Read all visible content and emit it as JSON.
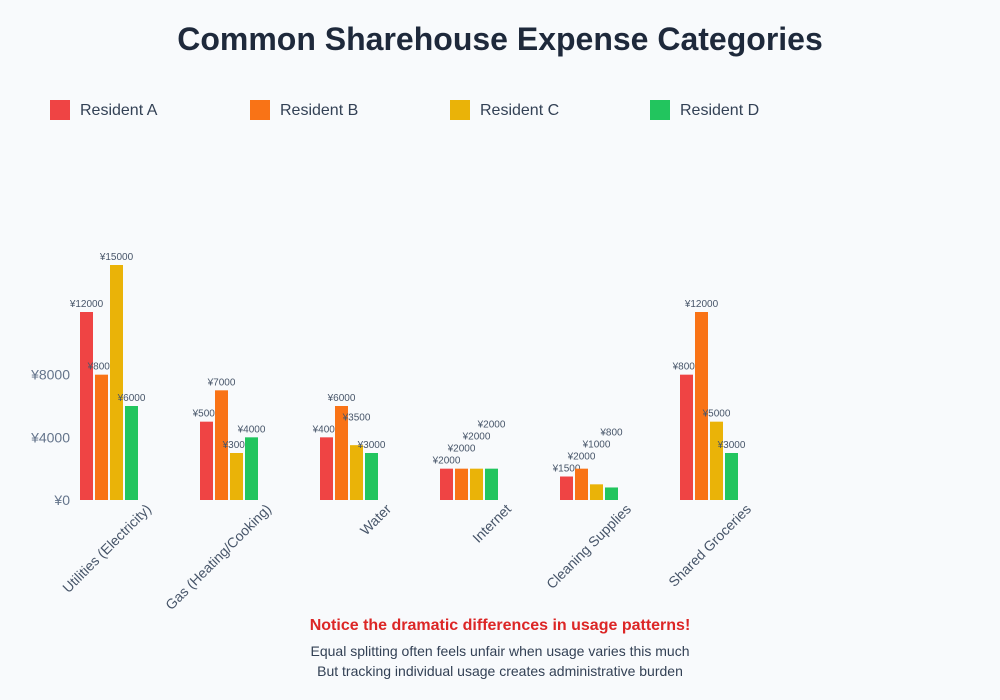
{
  "chart_data": {
    "type": "bar",
    "title": "Common Sharehouse Expense Categories",
    "categories": [
      "Utilities (Electricity)",
      "Gas (Heating/Cooking)",
      "Water",
      "Internet",
      "Cleaning Supplies",
      "Shared Groceries"
    ],
    "series": [
      {
        "name": "Resident A",
        "color": "#ef4444",
        "values": [
          12000,
          5000,
          4000,
          2000,
          1500,
          8000
        ]
      },
      {
        "name": "Resident B",
        "color": "#f97316",
        "values": [
          8000,
          7000,
          6000,
          2000,
          2000,
          12000
        ]
      },
      {
        "name": "Resident C",
        "color": "#eab308",
        "values": [
          15000,
          3000,
          3500,
          2000,
          1000,
          5000
        ]
      },
      {
        "name": "Resident D",
        "color": "#22c55e",
        "values": [
          6000,
          4000,
          3000,
          2000,
          800,
          3000
        ]
      }
    ],
    "ylim": [
      0,
      15000
    ],
    "y_tick_labels": [
      "¥0",
      "¥4000",
      "¥8000"
    ],
    "value_prefix": "¥",
    "legend_position": "top-left",
    "grid": false
  },
  "annotations": {
    "highlight": "Notice the dramatic differences in usage patterns!",
    "line1": "Equal splitting often feels unfair when usage varies this much",
    "line2": "But tracking individual usage creates administrative burden"
  }
}
